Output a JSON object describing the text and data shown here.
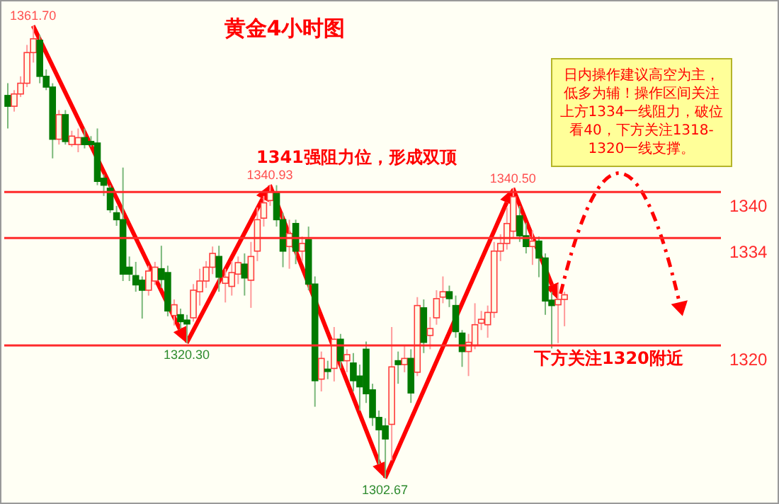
{
  "chart_data": {
    "type": "candlestick",
    "title": "黄金4小时图",
    "categories": [
      null,
      null,
      null,
      null,
      null,
      null,
      null,
      null,
      null,
      null,
      null,
      null,
      null,
      null,
      null,
      null,
      null,
      null,
      null,
      null,
      null,
      null,
      null,
      null,
      null,
      null,
      null,
      null,
      null,
      null,
      null,
      null,
      null,
      null,
      null,
      null,
      null,
      null,
      null,
      null,
      null,
      null,
      null,
      null,
      null,
      null,
      null,
      null,
      null,
      null,
      null,
      null,
      null,
      null,
      null,
      null,
      null,
      null,
      null,
      null,
      null,
      null,
      null,
      null,
      null,
      null,
      null,
      null,
      null,
      null,
      null,
      null,
      null,
      null,
      null,
      null,
      null,
      null,
      null,
      null,
      null,
      null,
      null,
      null,
      null,
      null,
      null,
      null
    ],
    "ohlc": [
      [
        1352.6,
        1354.2,
        1348.3,
        1351.2
      ],
      [
        1351.2,
        1353.3,
        1350.5,
        1352.8
      ],
      [
        1352.8,
        1355.1,
        1352.4,
        1354.2
      ],
      [
        1354.2,
        1359.2,
        1353.7,
        1358.2
      ],
      [
        1358.2,
        1361.7,
        1356.9,
        1360.0
      ],
      [
        1359.8,
        1360.5,
        1354.2,
        1355.1
      ],
      [
        1355.1,
        1356.0,
        1353.3,
        1353.7
      ],
      [
        1353.7,
        1354.2,
        1344.4,
        1346.9
      ],
      [
        1346.9,
        1350.7,
        1346.2,
        1350.1
      ],
      [
        1350.1,
        1350.7,
        1346.2,
        1346.6
      ],
      [
        1346.2,
        1348.0,
        1345.9,
        1347.3
      ],
      [
        1346.2,
        1348.3,
        1345.2,
        1347.1
      ],
      [
        1347.1,
        1348.3,
        1345.7,
        1346.2
      ],
      [
        1346.6,
        1347.3,
        1345.9,
        1346.2
      ],
      [
        1346.4,
        1348.3,
        1340.9,
        1341.4
      ],
      [
        1341.8,
        1342.3,
        1339.5,
        1340.9
      ],
      [
        1340.5,
        1340.9,
        1337.3,
        1337.7
      ],
      [
        1337.3,
        1338.2,
        1335.6,
        1336.4
      ],
      [
        1336.4,
        1343.2,
        1328.4,
        1329.3
      ],
      [
        1330.2,
        1331.6,
        1328.4,
        1329.3
      ],
      [
        1329.1,
        1330.9,
        1327.0,
        1327.9
      ],
      [
        1328.5,
        1329.0,
        1323.5,
        1327.2
      ],
      [
        1327.2,
        1330.4,
        1326.5,
        1329.7
      ],
      [
        1328.4,
        1330.9,
        1327.9,
        1330.2
      ],
      [
        1330.0,
        1333.0,
        1327.5,
        1328.6
      ],
      [
        1329.5,
        1330.4,
        1323.8,
        1324.5
      ],
      [
        1323.9,
        1326.0,
        1322.6,
        1325.3
      ],
      [
        1324.0,
        1324.8,
        1322.2,
        1323.1
      ],
      [
        1323.3,
        1324.0,
        1320.3,
        1322.8
      ],
      [
        1323.6,
        1328.0,
        1323.1,
        1327.2
      ],
      [
        1327.0,
        1330.0,
        1325.2,
        1328.4
      ],
      [
        1328.4,
        1331.0,
        1327.5,
        1330.2
      ],
      [
        1330.2,
        1332.9,
        1329.3,
        1332.0
      ],
      [
        1331.6,
        1333.0,
        1327.0,
        1328.9
      ],
      [
        1328.1,
        1330.0,
        1325.6,
        1328.9
      ],
      [
        1327.7,
        1331.0,
        1326.5,
        1329.5
      ],
      [
        1329.3,
        1331.6,
        1328.0,
        1330.8
      ],
      [
        1330.6,
        1332.0,
        1326.5,
        1328.8
      ],
      [
        1328.5,
        1333.5,
        1324.9,
        1331.6
      ],
      [
        1332.3,
        1338.0,
        1331.0,
        1336.4
      ],
      [
        1336.6,
        1339.5,
        1335.5,
        1338.6
      ],
      [
        1338.9,
        1340.93,
        1338.2,
        1340.0
      ],
      [
        1340.0,
        1340.9,
        1335.5,
        1336.4
      ],
      [
        1336.4,
        1337.3,
        1330.2,
        1332.3
      ],
      [
        1332.9,
        1336.4,
        1330.0,
        1334.6
      ],
      [
        1335.9,
        1336.4,
        1330.6,
        1332.3
      ],
      [
        1332.3,
        1334.2,
        1331.0,
        1333.3
      ],
      [
        1333.8,
        1335.5,
        1327.2,
        1328.0
      ],
      [
        1328.0,
        1329.0,
        1312.0,
        1315.4
      ],
      [
        1315.6,
        1319.2,
        1314.0,
        1318.3
      ],
      [
        1316.9,
        1318.0,
        1315.6,
        1316.6
      ],
      [
        1317.0,
        1322.4,
        1315.3,
        1320.8
      ],
      [
        1320.8,
        1321.5,
        1317.0,
        1318.0
      ],
      [
        1318.0,
        1319.5,
        1316.5,
        1318.8
      ],
      [
        1317.7,
        1319.0,
        1314.0,
        1315.4
      ],
      [
        1316.0,
        1317.5,
        1311.5,
        1314.6
      ],
      [
        1319.5,
        1320.5,
        1312.5,
        1313.7
      ],
      [
        1314.2,
        1315.0,
        1309.5,
        1310.6
      ],
      [
        1310.6,
        1311.5,
        1304.5,
        1309.0
      ],
      [
        1309.5,
        1310.5,
        1302.67,
        1307.8
      ],
      [
        1309.7,
        1322.4,
        1305.0,
        1317.2
      ],
      [
        1318.0,
        1319.2,
        1315.0,
        1317.5
      ],
      [
        1317.5,
        1320.0,
        1316.5,
        1318.3
      ],
      [
        1318.3,
        1319.5,
        1312.5,
        1313.8
      ],
      [
        1316.5,
        1326.3,
        1316.0,
        1325.2
      ],
      [
        1324.9,
        1326.0,
        1319.0,
        1320.4
      ],
      [
        1321.3,
        1323.7,
        1319.5,
        1322.2
      ],
      [
        1323.6,
        1327.2,
        1322.7,
        1326.1
      ],
      [
        1326.3,
        1329.0,
        1325.5,
        1327.0
      ],
      [
        1327.0,
        1327.8,
        1325.0,
        1326.1
      ],
      [
        1325.2,
        1326.5,
        1321.0,
        1321.8
      ],
      [
        1321.6,
        1322.0,
        1317.2,
        1319.2
      ],
      [
        1319.2,
        1321.5,
        1316.0,
        1320.4
      ],
      [
        1320.0,
        1325.5,
        1319.5,
        1322.7
      ],
      [
        1322.9,
        1324.5,
        1322.0,
        1323.4
      ],
      [
        1322.7,
        1325.2,
        1321.0,
        1324.3
      ],
      [
        1324.3,
        1333.5,
        1323.6,
        1332.3
      ],
      [
        1332.3,
        1334.5,
        1331.0,
        1333.3
      ],
      [
        1333.3,
        1338.0,
        1332.5,
        1335.9
      ],
      [
        1334.9,
        1340.5,
        1334.0,
        1339.4
      ],
      [
        1336.9,
        1338.2,
        1333.5,
        1334.3
      ],
      [
        1334.3,
        1336.0,
        1332.0,
        1332.9
      ],
      [
        1332.9,
        1335.0,
        1330.5,
        1333.6
      ],
      [
        1333.6,
        1334.2,
        1328.9,
        1331.4
      ],
      [
        1331.4,
        1332.0,
        1324.0,
        1325.8
      ],
      [
        1325.9,
        1327.0,
        1319.6,
        1325.2
      ],
      [
        1325.3,
        1328.0,
        1320.3,
        1326.0
      ],
      [
        1326.0,
        1327.0,
        1322.5,
        1326.6
      ]
    ],
    "ref_lines": [
      {
        "axis": "y",
        "value": 1340,
        "label": "1340",
        "color": "#ff2a2a"
      },
      {
        "axis": "y",
        "value": 1334,
        "label": "1334",
        "color": "#ff2a2a"
      },
      {
        "axis": "y",
        "value": 1320,
        "label": "1320",
        "color": "#ff2a2a"
      }
    ],
    "annotations": [
      "1341强阻力位，形成双顶",
      "日内操作建议高空为主，低多为辅！操作区间关注上方1334一线阻力，破位看40，下方关注1318-1320一线支撑。",
      "下方关注1320附近",
      {
        "text": "1361.70",
        "y": 1361.7
      },
      {
        "text": "1340.93",
        "y": 1340.93
      },
      {
        "text": "1320.30",
        "y": 1320.3
      },
      {
        "text": "1340.50",
        "y": 1340.5
      },
      {
        "text": "1302.67",
        "y": 1302.67
      }
    ],
    "tick_labels": false
  }
}
